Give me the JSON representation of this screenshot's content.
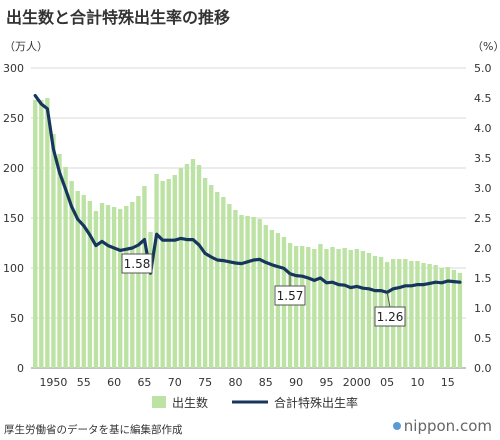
{
  "title": "出生数と合計特殊出生率の推移",
  "source": "厚生労働省のデータを基に編集部作成",
  "brand": "nippon.com",
  "colors": {
    "bars": "#bde3a4",
    "line": "#17365d",
    "grid": "#cccccc",
    "brand_dot": "#5a9bd5"
  },
  "chart_data": {
    "type": "bar+line",
    "title": "出生数と合計特殊出生率の推移",
    "y_left_unit": "（万人）",
    "y_right_unit": "（%）",
    "y_left_ticks": [
      "0",
      "50",
      "100",
      "150",
      "200",
      "250",
      "300"
    ],
    "y_right_ticks": [
      "0.0",
      "0.5",
      "1.0",
      "1.5",
      "2.0",
      "2.5",
      "3.0",
      "3.5",
      "4.0",
      "4.5",
      "5.0"
    ],
    "y_left_lim": [
      0,
      300
    ],
    "y_right_lim": [
      0,
      5
    ],
    "x_tick_labels": [
      {
        "year": 1950,
        "label": "1950"
      },
      {
        "year": 1955,
        "label": "55"
      },
      {
        "year": 1960,
        "label": "60"
      },
      {
        "year": 1965,
        "label": "65"
      },
      {
        "year": 1970,
        "label": "70"
      },
      {
        "year": 1975,
        "label": "75"
      },
      {
        "year": 1980,
        "label": "80"
      },
      {
        "year": 1985,
        "label": "85"
      },
      {
        "year": 1990,
        "label": "90"
      },
      {
        "year": 1995,
        "label": "95"
      },
      {
        "year": 2000,
        "label": "2000"
      },
      {
        "year": 2005,
        "label": "05"
      },
      {
        "year": 2010,
        "label": "10"
      },
      {
        "year": 2015,
        "label": "15"
      }
    ],
    "legend": {
      "bars": "出生数",
      "line": "合計特殊出生率",
      "position": "bottom"
    },
    "series": [
      {
        "name": "出生数",
        "type": "bar",
        "x": [
          1947,
          1948,
          1949,
          1950,
          1951,
          1952,
          1953,
          1954,
          1955,
          1956,
          1957,
          1958,
          1959,
          1960,
          1961,
          1962,
          1963,
          1964,
          1965,
          1966,
          1967,
          1968,
          1969,
          1970,
          1971,
          1972,
          1973,
          1974,
          1975,
          1976,
          1977,
          1978,
          1979,
          1980,
          1981,
          1982,
          1983,
          1984,
          1985,
          1986,
          1987,
          1988,
          1989,
          1990,
          1991,
          1992,
          1993,
          1994,
          1995,
          1996,
          1997,
          1998,
          1999,
          2000,
          2001,
          2002,
          2003,
          2004,
          2005,
          2006,
          2007,
          2008,
          2009,
          2010,
          2011,
          2012,
          2013,
          2014,
          2015,
          2016,
          2017
        ],
        "values": [
          268,
          268,
          270,
          234,
          214,
          201,
          187,
          177,
          173,
          167,
          157,
          165,
          163,
          161,
          159,
          162,
          166,
          172,
          182,
          136,
          194,
          187,
          189,
          193,
          200,
          204,
          209,
          203,
          190,
          183,
          176,
          171,
          164,
          158,
          153,
          152,
          151,
          149,
          143,
          138,
          135,
          131,
          125,
          122,
          122,
          121,
          119,
          124,
          119,
          121,
          119,
          120,
          118,
          119,
          117,
          115,
          112,
          111,
          106,
          109,
          109,
          109,
          107,
          107,
          105,
          104,
          103,
          100,
          101,
          98,
          95
        ]
      },
      {
        "name": "合計特殊出生率",
        "type": "line",
        "x": [
          1947,
          1948,
          1949,
          1950,
          1951,
          1952,
          1953,
          1954,
          1955,
          1956,
          1957,
          1958,
          1959,
          1960,
          1961,
          1962,
          1963,
          1964,
          1965,
          1966,
          1967,
          1968,
          1969,
          1970,
          1971,
          1972,
          1973,
          1974,
          1975,
          1976,
          1977,
          1978,
          1979,
          1980,
          1981,
          1982,
          1983,
          1984,
          1985,
          1986,
          1987,
          1988,
          1989,
          1990,
          1991,
          1992,
          1993,
          1994,
          1995,
          1996,
          1997,
          1998,
          1999,
          2000,
          2001,
          2002,
          2003,
          2004,
          2005,
          2006,
          2007,
          2008,
          2009,
          2010,
          2011,
          2012,
          2013,
          2014,
          2015,
          2016,
          2017
        ],
        "values": [
          4.54,
          4.4,
          4.32,
          3.65,
          3.26,
          2.98,
          2.69,
          2.48,
          2.37,
          2.22,
          2.04,
          2.11,
          2.04,
          2.0,
          1.96,
          1.98,
          2.0,
          2.05,
          2.14,
          1.58,
          2.23,
          2.13,
          2.13,
          2.13,
          2.16,
          2.14,
          2.14,
          2.05,
          1.91,
          1.85,
          1.8,
          1.79,
          1.77,
          1.75,
          1.74,
          1.77,
          1.8,
          1.81,
          1.76,
          1.72,
          1.69,
          1.66,
          1.57,
          1.54,
          1.53,
          1.5,
          1.46,
          1.5,
          1.42,
          1.43,
          1.39,
          1.38,
          1.34,
          1.36,
          1.33,
          1.32,
          1.29,
          1.29,
          1.26,
          1.32,
          1.34,
          1.37,
          1.37,
          1.39,
          1.39,
          1.41,
          1.43,
          1.42,
          1.45,
          1.44,
          1.43
        ]
      }
    ],
    "annotations": [
      {
        "year": 1966,
        "value": 1.58,
        "label": "1.58"
      },
      {
        "year": 1989,
        "value": 1.57,
        "label": "1.57"
      },
      {
        "year": 2005,
        "value": 1.26,
        "label": "1.26"
      }
    ]
  }
}
